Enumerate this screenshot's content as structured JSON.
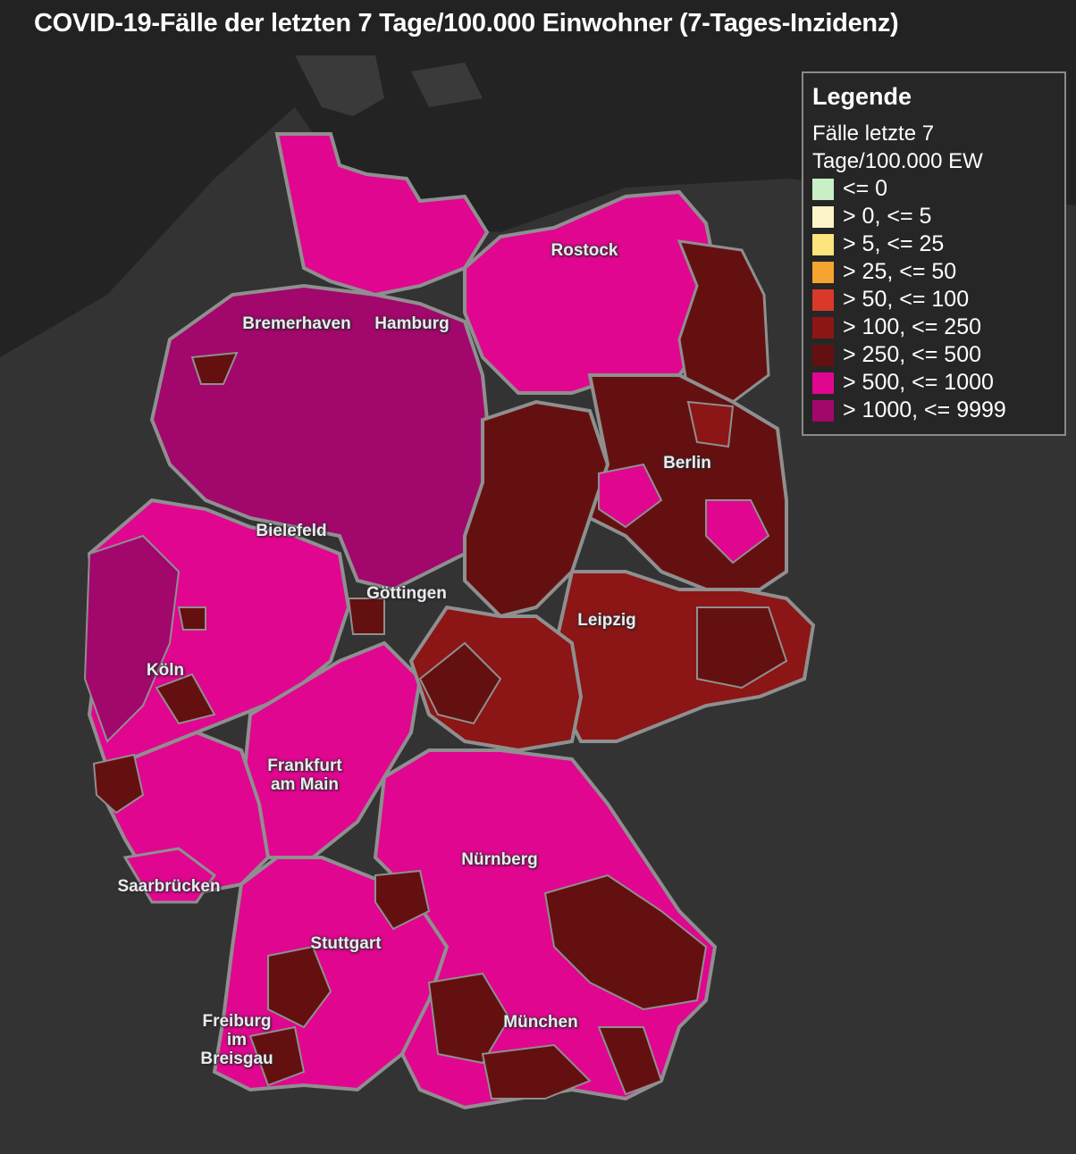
{
  "title": "COVID-19-Fälle der letzten 7 Tage/100.000 Einwohner (7-Tages-Inzidenz)",
  "legend": {
    "heading": "Legende",
    "subtitle": "Fälle letzte 7 Tage/100.000 EW",
    "items": [
      {
        "label": "<= 0",
        "color": "#c8efc6"
      },
      {
        "label": "> 0, <= 5",
        "color": "#fdf5c7"
      },
      {
        "label": "> 5, <= 25",
        "color": "#fbe57c"
      },
      {
        "label": "> 25, <= 50",
        "color": "#f6a430"
      },
      {
        "label": "> 50, <= 100",
        "color": "#d8392b"
      },
      {
        "label": "> 100, <= 250",
        "color": "#8c1515"
      },
      {
        "label": "> 250, <= 500",
        "color": "#651010"
      },
      {
        "label": "> 500, <= 1000",
        "color": "#e0068f"
      },
      {
        "label": "> 1000, <= 9999",
        "color": "#a2076c"
      }
    ]
  },
  "cities": [
    {
      "name": "Rostock"
    },
    {
      "name": "Bremerhaven"
    },
    {
      "name": "Hamburg"
    },
    {
      "name": "Berlin"
    },
    {
      "name": "Bielefeld"
    },
    {
      "name": "Göttingen"
    },
    {
      "name": "Leipzig"
    },
    {
      "name": "Köln"
    },
    {
      "name": "Frankfurt\nam Main"
    },
    {
      "name": "Nürnberg"
    },
    {
      "name": "Saarbrücken"
    },
    {
      "name": "Stuttgart"
    },
    {
      "name": "Freiburg\nim\nBreisgau"
    },
    {
      "name": "München"
    }
  ]
}
